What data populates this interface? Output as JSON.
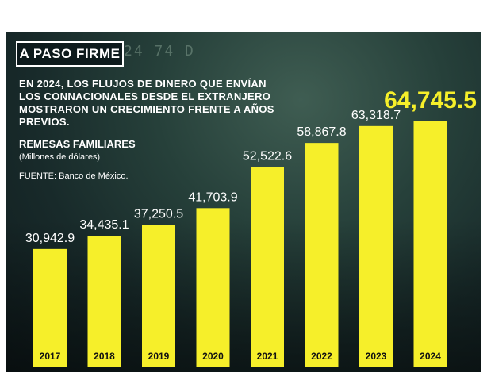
{
  "header": {
    "badge": "A PASO FIRME"
  },
  "description": "EN 2024, LOS FLUJOS DE DINERO QUE ENVÍAN LOS CONNACIONALES DESDE EL EXTRANJERO MOSTRARON UN CRECIMIENTO FRENTE A AÑOS PREVIOS.",
  "series_title": "REMESAS FAMILIARES",
  "units": "(Millones de dólares)",
  "source": "FUENTE: Banco de México.",
  "background_serial": "24 74 D",
  "colors": {
    "bar": "#f6ef2a",
    "highlight_label": "#f6ef2a",
    "label": "#ffffff",
    "year_label": "#111111"
  },
  "chart_data": {
    "type": "bar",
    "title": "REMESAS FAMILIARES",
    "ylabel": "Millones de dólares",
    "categories": [
      "2017",
      "2018",
      "2019",
      "2020",
      "2021",
      "2022",
      "2023",
      "2024"
    ],
    "values": [
      30942.9,
      34435.1,
      37250.5,
      41703.9,
      52522.6,
      58867.8,
      63318.7,
      64745.5
    ],
    "labels": [
      "30,942.9",
      "34,435.1",
      "37,250.5",
      "41,703.9",
      "52,522.6",
      "58,867.8",
      "63,318.7",
      "64,745.5"
    ],
    "highlight_index": 7,
    "ylim": [
      0,
      64745.5
    ]
  }
}
